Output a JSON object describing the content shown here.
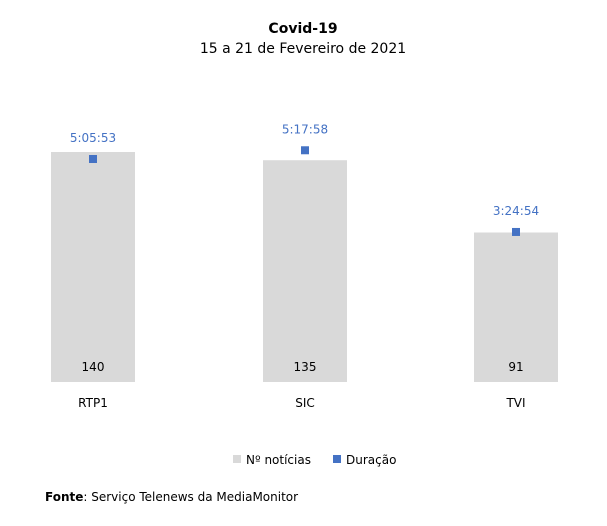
{
  "chart_data": {
    "type": "bar",
    "title": "Covid-19",
    "subtitle": "15 a 21 de Fevereiro de 2021",
    "categories": [
      "RTP1",
      "SIC",
      "TVI"
    ],
    "series": [
      {
        "name": "Nº notícias",
        "type": "bar",
        "color": "#d9d9d9",
        "values": [
          140,
          135,
          91
        ],
        "labels": [
          "140",
          "135",
          "91"
        ]
      },
      {
        "name": "Duração",
        "type": "scatter",
        "color": "#4472c4",
        "values": [
          "5:05:53",
          "5:17:58",
          "3:24:54"
        ],
        "values_seconds": [
          18353,
          19078,
          12294
        ]
      }
    ],
    "bar_ylim": [
      0,
      160
    ],
    "legend_position": "bottom",
    "grid": false
  },
  "source": {
    "label": "Fonte",
    "text": ": Serviço Telenews da MediaMonitor"
  }
}
